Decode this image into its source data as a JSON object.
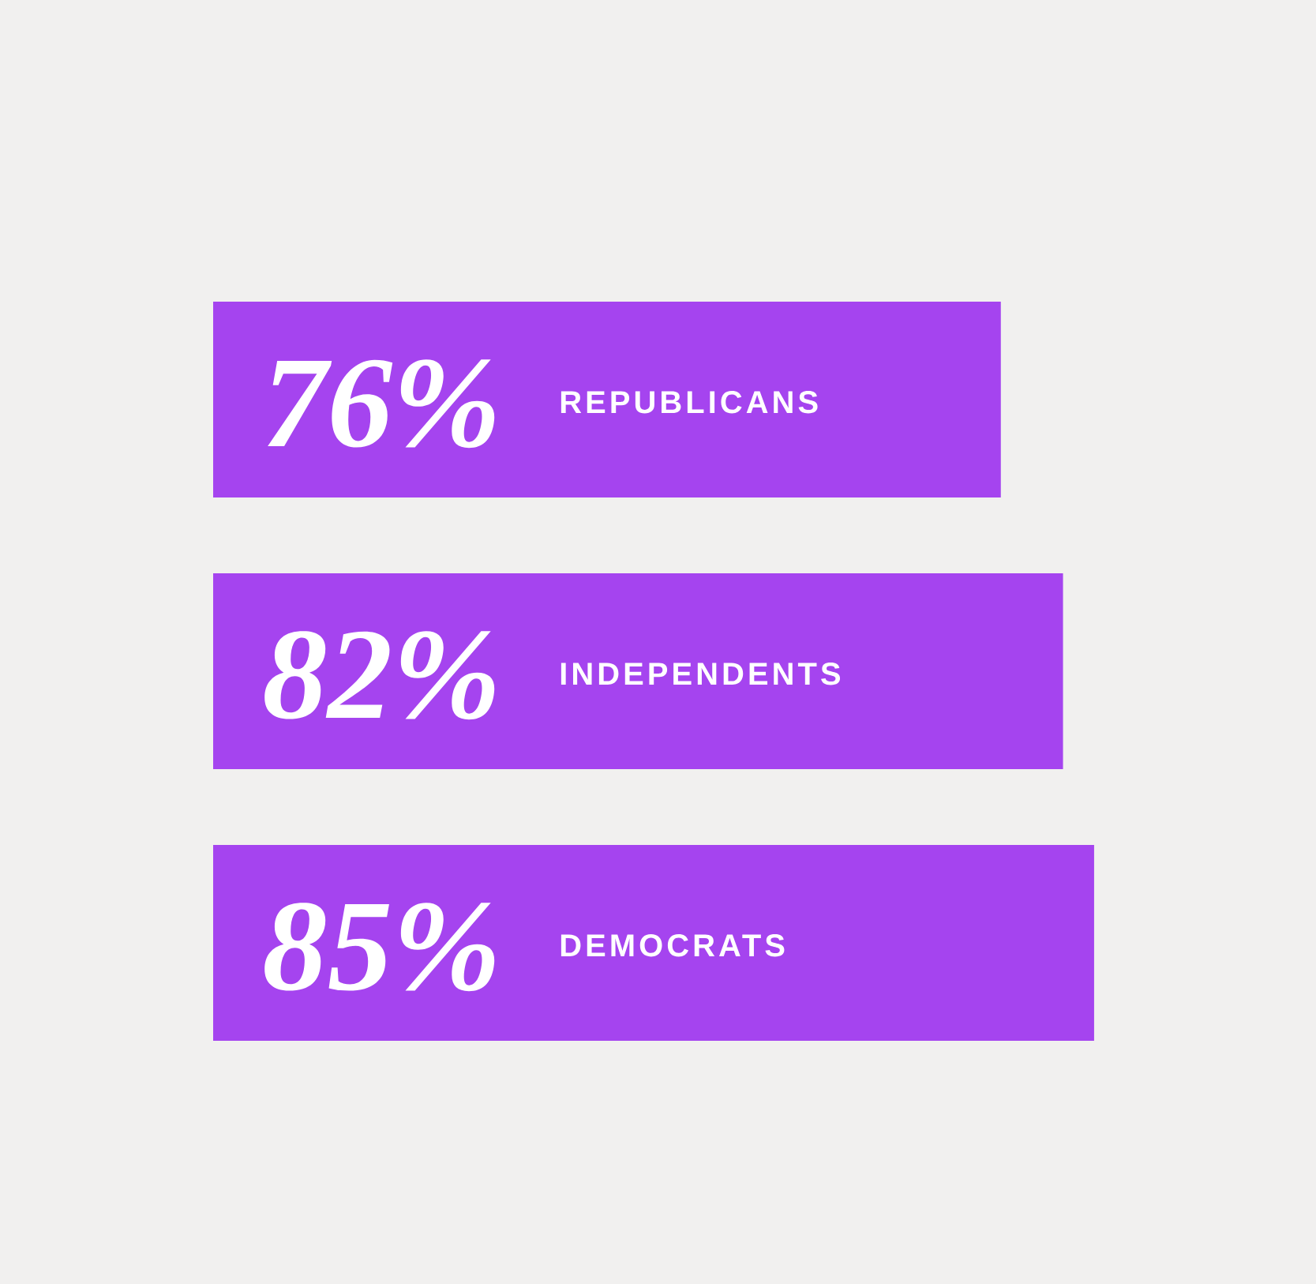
{
  "chart_data": {
    "type": "bar",
    "orientation": "horizontal",
    "categories": [
      "REPUBLICANS",
      "INDEPENDENTS",
      "DEMOCRATS"
    ],
    "values": [
      76,
      82,
      85
    ],
    "value_labels": [
      "76%",
      "82%",
      "85%"
    ],
    "color": "#a544ef"
  }
}
